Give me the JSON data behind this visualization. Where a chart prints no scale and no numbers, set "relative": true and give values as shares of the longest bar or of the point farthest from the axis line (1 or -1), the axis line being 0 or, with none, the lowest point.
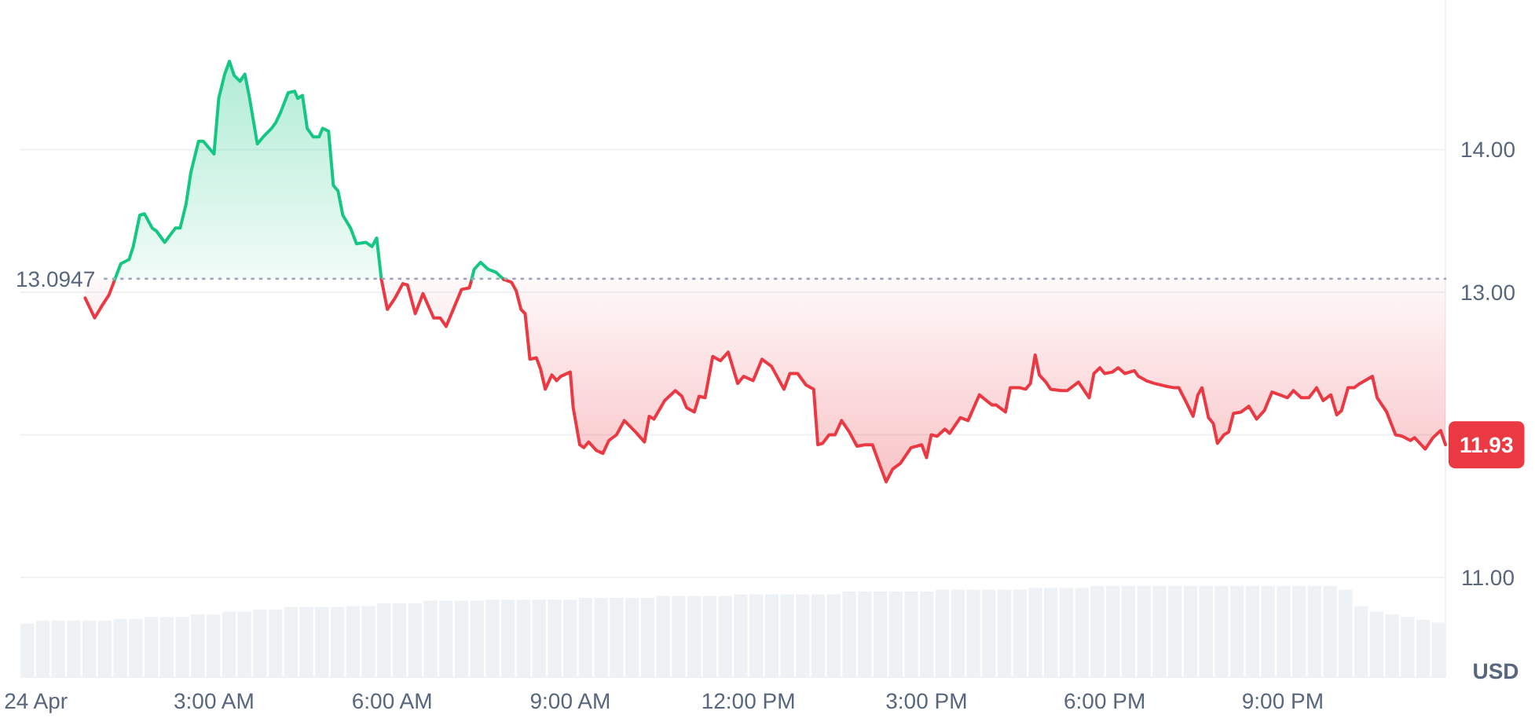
{
  "chart_data": [
    {
      "type": "area",
      "xlim": [
        -0.26,
        23.74
      ],
      "xticks": [
        {
          "value": 0,
          "label": "24 Apr"
        },
        {
          "value": 3,
          "label": "3:00 AM"
        },
        {
          "value": 6,
          "label": "6:00 AM"
        },
        {
          "value": 9,
          "label": "9:00 AM"
        },
        {
          "value": 12,
          "label": "12:00 PM"
        },
        {
          "value": 15,
          "label": "3:00 PM"
        },
        {
          "value": 18,
          "label": "6:00 PM"
        },
        {
          "value": 21,
          "label": "9:00 PM"
        }
      ],
      "ylim": [
        10.3,
        15.05
      ],
      "yticks": [
        {
          "value": 14,
          "label": "14.00"
        },
        {
          "value": 13,
          "label": "13.00"
        },
        {
          "value": 12,
          "label": null
        },
        {
          "value": 11,
          "label": "11.00"
        }
      ],
      "ylabel": "USD",
      "grid": "y",
      "series": [
        {
          "color": "#ea3943",
          "type": "line",
          "x": [
            0.83,
            0.99,
            1.12,
            1.23,
            1.33
          ],
          "values": [
            12.96,
            12.82,
            12.91,
            12.98,
            13.09
          ],
          "lower": [
            12.96,
            12.82,
            12.91,
            12.98,
            13.09
          ],
          "upper": [
            13.0947,
            13.0947,
            13.0947,
            13.0947,
            13.0947
          ]
        },
        {
          "color": "#16c784",
          "x": [
            1.33,
            1.43,
            1.57,
            1.64,
            1.75,
            1.83,
            1.96,
            2.03,
            2.17,
            2.35,
            2.43,
            2.53,
            2.61,
            2.74,
            2.82,
            3.0,
            3.08,
            3.18,
            3.26,
            3.34,
            3.44,
            3.52,
            3.6,
            3.73,
            3.83,
            3.97,
            4.04,
            4.12,
            4.25,
            4.36,
            4.41,
            4.49,
            4.57,
            4.67,
            4.77,
            4.83,
            4.93,
            5.01,
            5.09,
            5.17,
            5.3,
            5.4,
            5.56,
            5.66,
            5.74,
            5.82
          ],
          "values": [
            13.09,
            13.2,
            13.23,
            13.32,
            13.54,
            13.55,
            13.45,
            13.43,
            13.35,
            13.45,
            13.45,
            13.62,
            13.84,
            14.06,
            14.06,
            13.97,
            14.36,
            14.53,
            14.62,
            14.52,
            14.48,
            14.53,
            14.36,
            14.04,
            14.09,
            14.15,
            14.19,
            14.26,
            14.4,
            14.41,
            14.36,
            14.38,
            14.15,
            14.09,
            14.09,
            14.15,
            14.13,
            13.75,
            13.71,
            13.54,
            13.45,
            13.34,
            13.35,
            13.32,
            13.38,
            13.09
          ]
        },
        {
          "color": "#ea3943",
          "type": "line",
          "x": [
            5.82,
            5.92,
            6.05,
            6.18,
            6.26,
            6.39,
            6.52,
            6.7,
            6.81,
            6.91,
            7.02,
            7.17,
            7.3,
            7.34
          ],
          "values": [
            13.09,
            12.88,
            12.96,
            13.06,
            13.05,
            12.85,
            12.99,
            12.82,
            12.82,
            12.76,
            12.87,
            13.02,
            13.03,
            13.09
          ],
          "lower": [
            13.09,
            12.88,
            12.96,
            13.06,
            13.05,
            12.85,
            12.99,
            12.82,
            12.82,
            12.76,
            12.87,
            13.02,
            13.03,
            13.09
          ],
          "upper": [
            13.0947,
            13.0947,
            13.0947,
            13.0947,
            13.0947,
            13.0947,
            13.0947,
            13.0947,
            13.0947,
            13.0947,
            13.0947,
            13.0947,
            13.0947,
            13.0947
          ]
        },
        {
          "color": "#16c784",
          "x": [
            7.34,
            7.38,
            7.49,
            7.62,
            7.75,
            7.88
          ],
          "values": [
            13.09,
            13.16,
            13.21,
            13.16,
            13.14,
            13.09
          ]
        },
        {
          "color": "#ea3943",
          "type": "line",
          "x": [
            7.88,
            8.01,
            8.09,
            8.17,
            8.24,
            8.32,
            8.43,
            8.5,
            8.58,
            8.69,
            8.77,
            8.84,
            9.0,
            9.05,
            9.16,
            9.23,
            9.31,
            9.44,
            9.55,
            9.65,
            9.78,
            9.91,
            10.1,
            10.25,
            10.33,
            10.41,
            10.59,
            10.77,
            10.88,
            10.96,
            11.09,
            11.17,
            11.27,
            11.4,
            11.53,
            11.66,
            11.82,
            11.92,
            12.08,
            12.23,
            12.39,
            12.6,
            12.7,
            12.83,
            12.97,
            13.1,
            13.17,
            13.25,
            13.36,
            13.46,
            13.57,
            13.7,
            13.83,
            13.96,
            14.09,
            14.22,
            14.32,
            14.43,
            14.56,
            14.74,
            14.92,
            15.0,
            15.08,
            15.18,
            15.31,
            15.39,
            15.57,
            15.7,
            15.89,
            16.1,
            16.17,
            16.33,
            16.41,
            16.57,
            16.67,
            16.75,
            16.83,
            16.9,
            17.01,
            17.09,
            17.27,
            17.37,
            17.56,
            17.74,
            17.82,
            17.92,
            18.0,
            18.13,
            18.23,
            18.34,
            18.5,
            18.57,
            18.7,
            18.84,
            19.04,
            19.17,
            19.25,
            19.36,
            19.49,
            19.57,
            19.64,
            19.75,
            19.83,
            19.9,
            20.01,
            20.09,
            20.17,
            20.3,
            20.43,
            20.56,
            20.69,
            20.82,
            20.95,
            21.08,
            21.18,
            21.31,
            21.44,
            21.57,
            21.68,
            21.81,
            21.91,
            21.99,
            22.1,
            22.2,
            22.3,
            22.51,
            22.59,
            22.75,
            22.9,
            23.01,
            23.15,
            23.22,
            23.4,
            23.53,
            23.66,
            23.74
          ],
          "values": [
            13.09,
            13.07,
            13.01,
            12.88,
            12.85,
            12.53,
            12.54,
            12.46,
            12.32,
            12.42,
            12.38,
            12.41,
            12.44,
            12.19,
            11.93,
            11.91,
            11.95,
            11.89,
            11.87,
            11.96,
            12.0,
            12.1,
            12.02,
            11.95,
            12.13,
            12.11,
            12.24,
            12.31,
            12.27,
            12.19,
            12.16,
            12.27,
            12.26,
            12.55,
            12.52,
            12.58,
            12.36,
            12.41,
            12.38,
            12.53,
            12.48,
            12.32,
            12.43,
            12.43,
            12.35,
            12.32,
            11.93,
            11.94,
            12.0,
            12.0,
            12.1,
            12.02,
            11.92,
            11.93,
            11.93,
            11.78,
            11.67,
            11.76,
            11.8,
            11.91,
            11.93,
            11.84,
            12.0,
            11.99,
            12.04,
            12.01,
            12.12,
            12.1,
            12.28,
            12.21,
            12.21,
            12.16,
            12.33,
            12.33,
            12.32,
            12.36,
            12.56,
            12.42,
            12.37,
            12.32,
            12.31,
            12.31,
            12.37,
            12.26,
            12.43,
            12.47,
            12.43,
            12.44,
            12.47,
            12.43,
            12.45,
            12.41,
            12.38,
            12.36,
            12.34,
            12.33,
            12.33,
            12.24,
            12.13,
            12.28,
            12.33,
            12.12,
            12.08,
            11.94,
            12.0,
            12.02,
            12.15,
            12.16,
            12.2,
            12.11,
            12.17,
            12.3,
            12.28,
            12.26,
            12.31,
            12.26,
            12.26,
            12.33,
            12.24,
            12.28,
            12.14,
            12.17,
            12.33,
            12.33,
            12.36,
            12.41,
            12.26,
            12.16,
            12.0,
            11.99,
            11.96,
            11.98,
            11.9,
            11.98,
            12.03,
            11.93
          ],
          "lower": [
            13.09,
            13.07,
            13.01,
            12.88,
            12.85,
            12.53,
            12.54,
            12.46,
            12.32,
            12.42,
            12.38,
            12.41,
            12.44,
            12.19,
            11.93,
            11.91,
            11.95,
            11.89,
            11.87,
            11.96,
            12.0,
            12.1,
            12.02,
            11.95,
            12.13,
            12.11,
            12.24,
            12.31,
            12.27,
            12.19,
            12.16,
            12.27,
            12.26,
            12.55,
            12.52,
            12.58,
            12.36,
            12.41,
            12.38,
            12.53,
            12.48,
            12.32,
            12.43,
            12.43,
            12.35,
            12.32,
            11.93,
            11.94,
            12.0,
            12.0,
            12.1,
            12.02,
            11.92,
            11.93,
            11.93,
            11.78,
            11.67,
            11.76,
            11.8,
            11.91,
            11.93,
            11.84,
            12.0,
            11.99,
            12.04,
            12.01,
            12.12,
            12.1,
            12.28,
            12.21,
            12.21,
            12.16,
            12.33,
            12.33,
            12.32,
            12.36,
            12.56,
            12.42,
            12.37,
            12.32,
            12.31,
            12.31,
            12.37,
            12.26,
            12.43,
            12.47,
            12.43,
            12.44,
            12.47,
            12.43,
            12.45,
            12.41,
            12.38,
            12.36,
            12.34,
            12.33,
            12.33,
            12.24,
            12.13,
            12.28,
            12.33,
            12.12,
            12.08,
            11.94,
            12.0,
            12.02,
            12.15,
            12.16,
            12.2,
            12.11,
            12.17,
            12.3,
            12.28,
            12.26,
            12.31,
            12.26,
            12.26,
            12.33,
            12.24,
            12.28,
            12.14,
            12.17,
            12.33,
            12.33,
            12.36,
            12.41,
            12.26,
            12.16,
            12.0,
            11.99,
            11.96,
            11.98,
            11.9,
            11.98,
            12.03,
            11.93
          ],
          "upper": [
            13.0947,
            13.0947,
            13.0947,
            13.0947,
            13.0947,
            13.0947,
            13.0947,
            13.0947,
            13.0947,
            13.0947,
            13.0947,
            13.0947,
            13.0947,
            13.0947,
            13.0947,
            13.0947,
            13.0947,
            13.0947,
            13.0947,
            13.0947,
            13.0947,
            13.0947,
            13.0947,
            13.0947,
            13.0947,
            13.0947,
            13.0947,
            13.0947,
            13.0947,
            13.0947,
            13.0947,
            13.0947,
            13.0947,
            13.0947,
            13.0947,
            13.0947,
            13.0947,
            13.0947,
            13.0947,
            13.0947,
            13.0947,
            13.0947,
            13.0947,
            13.0947,
            13.0947,
            13.0947,
            13.0947,
            13.0947,
            13.0947,
            13.0947,
            13.0947,
            13.0947,
            13.0947,
            13.0947,
            13.0947,
            13.0947,
            13.0947,
            13.0947,
            13.0947,
            13.0947,
            13.0947,
            13.0947,
            13.0947,
            13.0947,
            13.0947,
            13.0947,
            13.0947,
            13.0947,
            13.0947,
            13.0947,
            13.0947,
            13.0947,
            13.0947,
            13.0947,
            13.0947,
            13.0947,
            13.0947,
            13.0947,
            13.0947,
            13.0947,
            13.0947,
            13.0947,
            13.0947,
            13.0947,
            13.0947,
            13.0947,
            13.0947,
            13.0947,
            13.0947,
            13.0947,
            13.0947,
            13.0947,
            13.0947,
            13.0947,
            13.0947,
            13.0947,
            13.0947,
            13.0947,
            13.0947,
            13.0947,
            13.0947,
            13.0947,
            13.0947,
            13.0947,
            13.0947,
            13.0947,
            13.0947,
            13.0947,
            13.0947,
            13.0947,
            13.0947,
            13.0947,
            13.0947,
            13.0947,
            13.0947,
            13.0947,
            13.0947,
            13.0947,
            13.0947,
            13.0947,
            13.0947,
            13.0947,
            13.0947,
            13.0947,
            13.0947,
            13.0947,
            13.0947,
            13.0947,
            13.0947,
            13.0947,
            13.0947,
            13.0947,
            13.0947,
            13.0947,
            13.0947,
            13.0947
          ]
        }
      ],
      "ref_lines": [
        {
          "axis": "y",
          "value": 13.0947,
          "label": "13.0947",
          "color": "#a1a7bb",
          "line_style": "dotted"
        }
      ],
      "annotations": [
        {
          "text": "11.93",
          "x": 23.74,
          "y": 11.93
        }
      ]
    },
    {
      "type": "bar",
      "relative": true,
      "color": "#eff2f5",
      "categories": [
        null,
        null,
        null,
        null,
        null,
        null,
        null,
        null,
        null,
        null,
        null,
        null,
        null,
        null,
        null,
        null,
        null,
        null,
        null,
        null,
        null,
        null,
        null,
        null,
        null,
        null,
        null,
        null,
        null,
        null,
        null,
        null,
        null,
        null,
        null,
        null,
        null,
        null,
        null,
        null,
        null,
        null,
        null,
        null,
        null,
        null,
        null,
        null,
        null,
        null,
        null,
        null,
        null,
        null,
        null,
        null,
        null,
        null,
        null,
        null,
        null,
        null,
        null,
        null,
        null,
        null,
        null,
        null,
        null,
        null,
        null,
        null,
        null,
        null,
        null,
        null,
        null,
        null,
        null,
        null,
        null,
        null,
        null,
        null,
        null,
        null,
        null,
        null,
        null,
        null,
        null,
        null
      ],
      "values": [
        0.59,
        0.62,
        0.62,
        0.62,
        0.62,
        0.62,
        0.64,
        0.64,
        0.66,
        0.66,
        0.66,
        0.69,
        0.69,
        0.72,
        0.72,
        0.74,
        0.74,
        0.77,
        0.77,
        0.77,
        0.77,
        0.78,
        0.78,
        0.81,
        0.81,
        0.81,
        0.84,
        0.84,
        0.84,
        0.84,
        0.85,
        0.85,
        0.85,
        0.85,
        0.85,
        0.85,
        0.87,
        0.87,
        0.87,
        0.87,
        0.87,
        0.89,
        0.89,
        0.89,
        0.89,
        0.89,
        0.91,
        0.91,
        0.91,
        0.91,
        0.91,
        0.91,
        0.91,
        0.94,
        0.94,
        0.94,
        0.94,
        0.94,
        0.94,
        0.96,
        0.96,
        0.96,
        0.96,
        0.96,
        0.96,
        0.98,
        0.98,
        0.98,
        0.98,
        1,
        1,
        1,
        1,
        1,
        1,
        1,
        1,
        1,
        1,
        1,
        1,
        1,
        1,
        1,
        1,
        0.96,
        0.78,
        0.72,
        0.69,
        0.66,
        0.63,
        0.6
      ]
    }
  ]
}
